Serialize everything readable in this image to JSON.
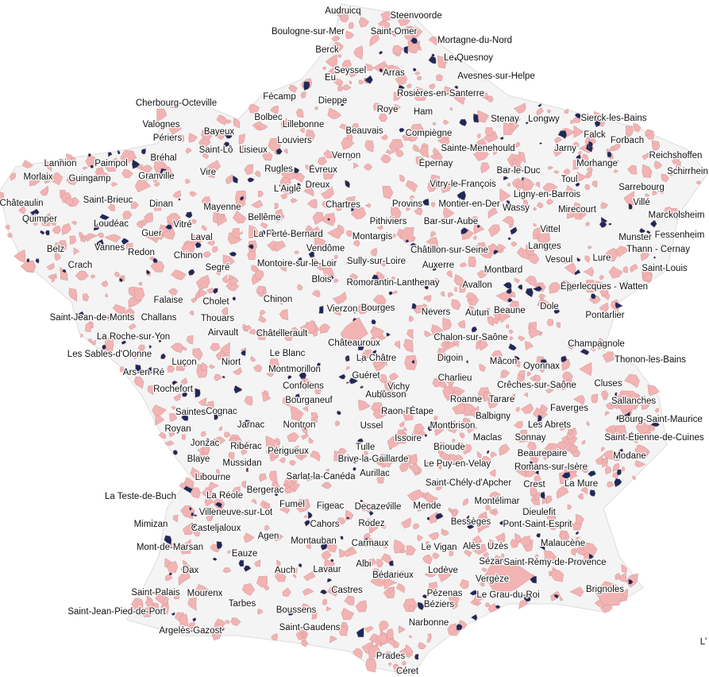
{
  "map": {
    "labels": [
      "Audruicq",
      "Steenvoorde",
      "Boulogne-sur-Mer",
      "Saint-Omer",
      "Mortagne-du-Nord",
      "Berck",
      "Le Quesnoy",
      "Seyssel",
      "Arras",
      "Avesnes-sur-Helpe",
      "Eu",
      "Rosières-en-Santerre",
      "Fécamp",
      "Cherbourg-Octeville",
      "Dieppe",
      "Roye",
      "Ham",
      "Bolbec",
      "Beauvais",
      "Lillebonne",
      "Stenay",
      "Longwy",
      "Sierck-les-Bains",
      "Valognes",
      "Bayeux",
      "Compiègne",
      "Louviers",
      "Périers",
      "Falck",
      "Forbach",
      "Reichshoffen",
      "Sainte-Menehould",
      "Jarny",
      "Saint-Lô",
      "Lisieux",
      "Vernon",
      "Bréhal",
      "Épernay",
      "Morhange",
      "Toul",
      "Schirrhein",
      "Lannion",
      "Paimpol",
      "Morlaix",
      "Guingamp",
      "Granville",
      "Vire",
      "Rugles",
      "Évreux",
      "Vitry-le-François",
      "Bar-le-Duc",
      "Sarrebourg",
      "Ligny-en-Barrois",
      "Saint-Brieuc",
      "Dreux",
      "L'Aigle",
      "Châteaulin",
      "Dinan",
      "Mayenne",
      "Chartres",
      "Provins",
      "Montier-en-Der",
      "Wassy",
      "Mirecourt",
      "Villé",
      "Marckolsheim",
      "Quimper",
      "Loudéac",
      "Vitré",
      "Bellême",
      "Pithiviers",
      "Bar-sur-Aube",
      "Guer",
      "Laval",
      "La Ferté-Bernard",
      "Montargis",
      "Vittel",
      "Fessenheim",
      "Munster",
      "Belz",
      "Vannes",
      "Redon",
      "Chinon",
      "Vendôme",
      "Châtillon-sur-Seine",
      "Langres",
      "Thann - Cernay",
      "Crach",
      "Segré",
      "Montoire-sur-le-Loir",
      "Sully-sur-Loire",
      "Auxerre",
      "Montbard",
      "Vesoul",
      "Lure",
      "Saint-Louis",
      "Blois",
      "Romorantin-Lanthenay",
      "Avallon",
      "Éperlecques - Watten",
      "Chinon",
      "Falaise",
      "Cholet",
      "Saint-Jean-de-Monts",
      "Challans",
      "Vierzon",
      "Bourges",
      "Nevers",
      "Autun",
      "Beaune",
      "Dole",
      "Pontarlier",
      "Thouars",
      "Airvault",
      "Châtellerault",
      "La Roche-sur-Yon",
      "Les Sables-d'Olonne",
      "Châteauroux",
      "Chalon-sur-Saône",
      "Champagnole",
      "Le Blanc",
      "La Châtre",
      "Digoin",
      "Mâcon",
      "Oyonnax",
      "Thonon-les-Bains",
      "Luçon",
      "Niort",
      "Montmorillon",
      "Ars-en-Ré",
      "Guéret",
      "Charlieu",
      "Crêches-sur-Saône",
      "Cluses",
      "Rochefort",
      "Confolens",
      "Vichy",
      "Roanne",
      "Tarare",
      "Sallanches",
      "Bourganeuf",
      "Aubusson",
      "Raon-l'Étape",
      "Saintes",
      "Cognac",
      "Balbigny",
      "Faverges",
      "Bourg-Saint-Maurice",
      "Royan",
      "Jarnac",
      "Nontron",
      "Ussel",
      "Montbrison",
      "Les Abrets",
      "Issoire",
      "Tulle",
      "Brioude",
      "Maclas",
      "Sonnay",
      "Saint-Étienne-de-Cuines",
      "Jonzac",
      "Ribérac",
      "Périgueux",
      "Brive-la-Gaillarde",
      "Beaurepaire",
      "Modane",
      "Blaye",
      "Mussidan",
      "Le Puy-en-Velay",
      "Romans-sur-Isère",
      "Libourne",
      "Aurillac",
      "Sarlat-la-Canéda",
      "Saint-Chély-d'Apcher",
      "Crest",
      "La Mure",
      "Bergerac",
      "La Teste-de-Buch",
      "La Réole",
      "Villeneuve-sur-Lot",
      "Fumel",
      "Figeac",
      "Decazeville",
      "Mende",
      "Montélimar",
      "Dieulefit",
      "Rodez",
      "Cahors",
      "Mimizan",
      "Casteljaloux",
      "Agen",
      "Montauban",
      "Carmaux",
      "Bessèges",
      "Pont-Saint-Esprit",
      "Malaucène",
      "Mont-de-Marsan",
      "Eauze",
      "Le Vigan",
      "Alès",
      "Uzès",
      "Sézanne",
      "Saint-Rémy-de-Provence",
      "Dax",
      "Auch",
      "Lavaur",
      "Albi",
      "Bédarieux",
      "Lodève",
      "Vergèze",
      "Castres",
      "Pézenas",
      "Le Grau-du-Roi",
      "Brignoles",
      "Saint-Palais",
      "Mourenx",
      "Saint-Jean-Pied-de-Port",
      "Tarbes",
      "Boussens",
      "Béziers",
      "Narbonne",
      "Saint-Gaudens",
      "Argelès-Gazost",
      "L'",
      "Prades",
      "Céret"
    ]
  }
}
